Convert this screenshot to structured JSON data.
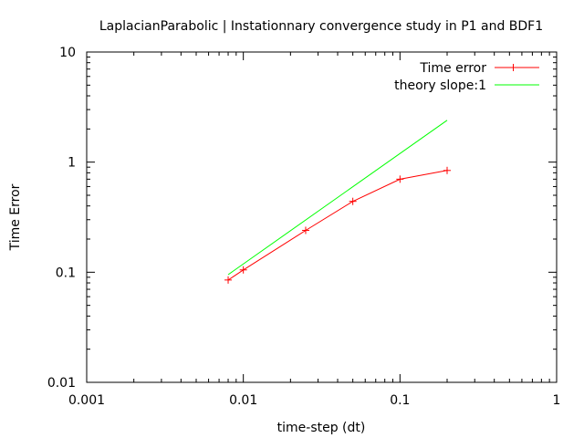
{
  "chart_data": {
    "type": "line",
    "title": "LaplacianParabolic | Instationnary convergence study in P1 and BDF1",
    "xlabel": "time-step (dt)",
    "ylabel": "Time Error",
    "xscale": "log",
    "yscale": "log",
    "xlim": [
      0.001,
      1
    ],
    "ylim": [
      0.01,
      10
    ],
    "x_ticks": [
      0.001,
      0.01,
      0.1,
      1
    ],
    "x_tick_labels": [
      "0.001",
      "0.01",
      "0.1",
      "1"
    ],
    "y_ticks": [
      0.01,
      0.1,
      1,
      10
    ],
    "y_tick_labels": [
      "0.01",
      "0.1",
      "1",
      "10"
    ],
    "grid": false,
    "legend_position": "top-right",
    "series": [
      {
        "name": "Time error",
        "color": "#ff0000",
        "marker": "plus",
        "x": [
          0.008,
          0.01,
          0.025,
          0.05,
          0.1,
          0.2
        ],
        "y": [
          0.085,
          0.105,
          0.24,
          0.44,
          0.7,
          0.84
        ]
      },
      {
        "name": "theory slope:1",
        "color": "#00ff00",
        "marker": "none",
        "x": [
          0.008,
          0.2
        ],
        "y": [
          0.095,
          2.4
        ]
      }
    ]
  }
}
